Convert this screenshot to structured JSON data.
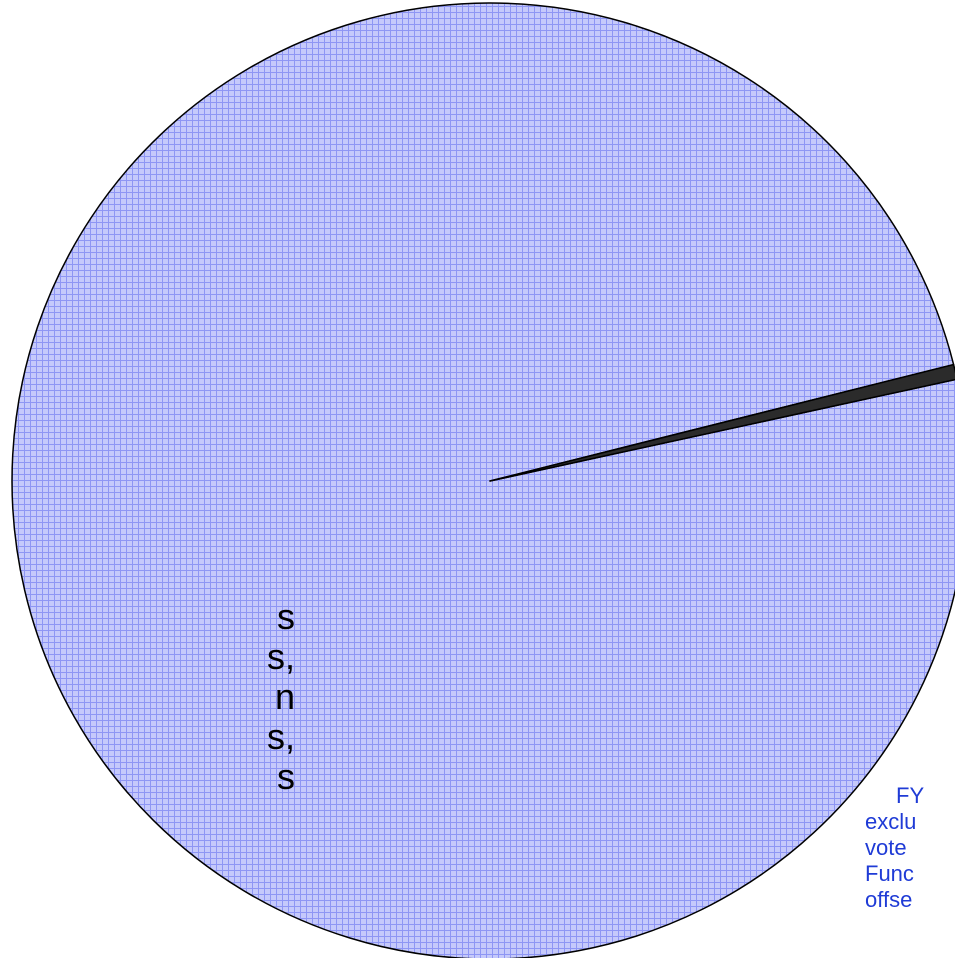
{
  "colors": {
    "pie_fill": "#c5c9fb",
    "grid_line": "#8e96f4",
    "outline": "#000000",
    "slice_dark": "#2b2b2b",
    "note_text": "#1f3bd6"
  },
  "left_label_fragments": [
    "s",
    "s,",
    "n",
    "s,",
    "s"
  ],
  "right_note_fragments": [
    "FY",
    "exclu",
    "vote",
    "Func",
    "offse"
  ],
  "chart_data": {
    "type": "pie",
    "title": "",
    "slices": [
      {
        "label": "",
        "value": 99.5,
        "pattern": "grid"
      },
      {
        "label": "",
        "value": 0.5,
        "pattern": "solid-dark"
      }
    ],
    "start_angle_deg": -12.3,
    "legend": "none",
    "grid": false
  }
}
